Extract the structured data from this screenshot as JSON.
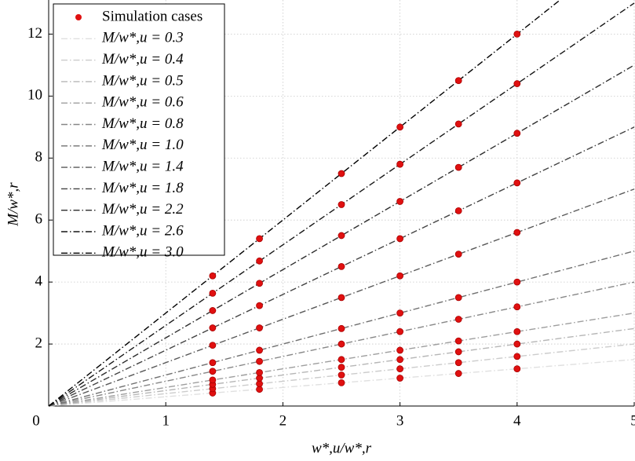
{
  "chart_data": {
    "type": "line",
    "x_label": "w*,u/w*,r",
    "y_label": "M/w*,r",
    "xlim": [
      0,
      5
    ],
    "ylim": [
      0,
      13.1
    ],
    "xticks": [
      0,
      1,
      2,
      3,
      4,
      5
    ],
    "yticks": [
      2,
      4,
      6,
      8,
      10,
      12
    ],
    "grid": true,
    "legend": "upper left",
    "series": [
      {
        "name": "Simulation cases",
        "type": "scatter",
        "color": "#e01010",
        "x": [
          1.4,
          1.4,
          1.4,
          1.4,
          1.4,
          1.4,
          1.4,
          1.4,
          1.4,
          1.4,
          1.4,
          1.8,
          1.8,
          1.8,
          1.8,
          1.8,
          1.8,
          1.8,
          1.8,
          1.8,
          1.8,
          1.8,
          2.5,
          2.5,
          2.5,
          2.5,
          2.5,
          2.5,
          2.5,
          2.5,
          2.5,
          2.5,
          2.5,
          3,
          3,
          3,
          3,
          3,
          3,
          3,
          3,
          3,
          3,
          3,
          3.5,
          3.5,
          3.5,
          3.5,
          3.5,
          3.5,
          3.5,
          3.5,
          3.5,
          3.5,
          3.5,
          4,
          4,
          4,
          4,
          4,
          4,
          4,
          4,
          4,
          4,
          4
        ],
        "values": [
          0.42,
          0.56,
          0.7,
          0.84,
          1.12,
          1.4,
          1.96,
          2.52,
          3.08,
          3.64,
          4.2,
          0.54,
          0.72,
          0.9,
          1.08,
          1.44,
          1.8,
          2.52,
          3.24,
          3.96,
          4.68,
          5.4,
          0.75,
          1,
          1.25,
          1.5,
          2,
          2.5,
          3.5,
          4.5,
          5.5,
          6.5,
          7.5,
          0.9,
          1.2,
          1.5,
          1.8,
          2.4,
          3,
          4.2,
          5.4,
          6.6,
          7.8,
          9,
          1.05,
          1.4,
          1.75,
          2.1,
          2.8,
          3.5,
          4.9,
          6.3,
          7.7,
          9.1,
          10.5,
          1.2,
          1.6,
          2,
          2.4,
          3.2,
          4,
          5.6,
          7.2,
          8.8,
          10.4,
          12
        ]
      },
      {
        "name": "M/w*,u = 0.3",
        "type": "line",
        "color": "#e0e0e0",
        "x": [
          0,
          5
        ],
        "values": [
          0,
          1.5
        ]
      },
      {
        "name": "M/w*,u = 0.4",
        "type": "line",
        "color": "#cccccc",
        "x": [
          0,
          5
        ],
        "values": [
          0,
          2
        ]
      },
      {
        "name": "M/w*,u = 0.5",
        "type": "line",
        "color": "#b6b6b6",
        "x": [
          0,
          5
        ],
        "values": [
          0,
          2.5
        ]
      },
      {
        "name": "M/w*,u = 0.6",
        "type": "line",
        "color": "#9e9e9e",
        "x": [
          0,
          5
        ],
        "values": [
          0,
          3
        ]
      },
      {
        "name": "M/w*,u = 0.8",
        "type": "line",
        "color": "#878787",
        "x": [
          0,
          5
        ],
        "values": [
          0,
          4
        ]
      },
      {
        "name": "M/w*,u = 1.0",
        "type": "line",
        "color": "#707070",
        "x": [
          0,
          5
        ],
        "values": [
          0,
          5
        ]
      },
      {
        "name": "M/w*,u = 1.4",
        "type": "line",
        "color": "#595959",
        "x": [
          0,
          5
        ],
        "values": [
          0,
          7
        ]
      },
      {
        "name": "M/w*,u = 1.8",
        "type": "line",
        "color": "#434343",
        "x": [
          0,
          5
        ],
        "values": [
          0,
          9
        ]
      },
      {
        "name": "M/w*,u = 2.2",
        "type": "line",
        "color": "#2d2d2d",
        "x": [
          0,
          5
        ],
        "values": [
          0,
          11
        ]
      },
      {
        "name": "M/w*,u = 2.6",
        "type": "line",
        "color": "#171717",
        "x": [
          0,
          5
        ],
        "values": [
          0,
          13
        ]
      },
      {
        "name": "M/w*,u = 3.0",
        "type": "line",
        "color": "#000000",
        "x": [
          0,
          5
        ],
        "values": [
          0,
          15
        ]
      }
    ]
  }
}
